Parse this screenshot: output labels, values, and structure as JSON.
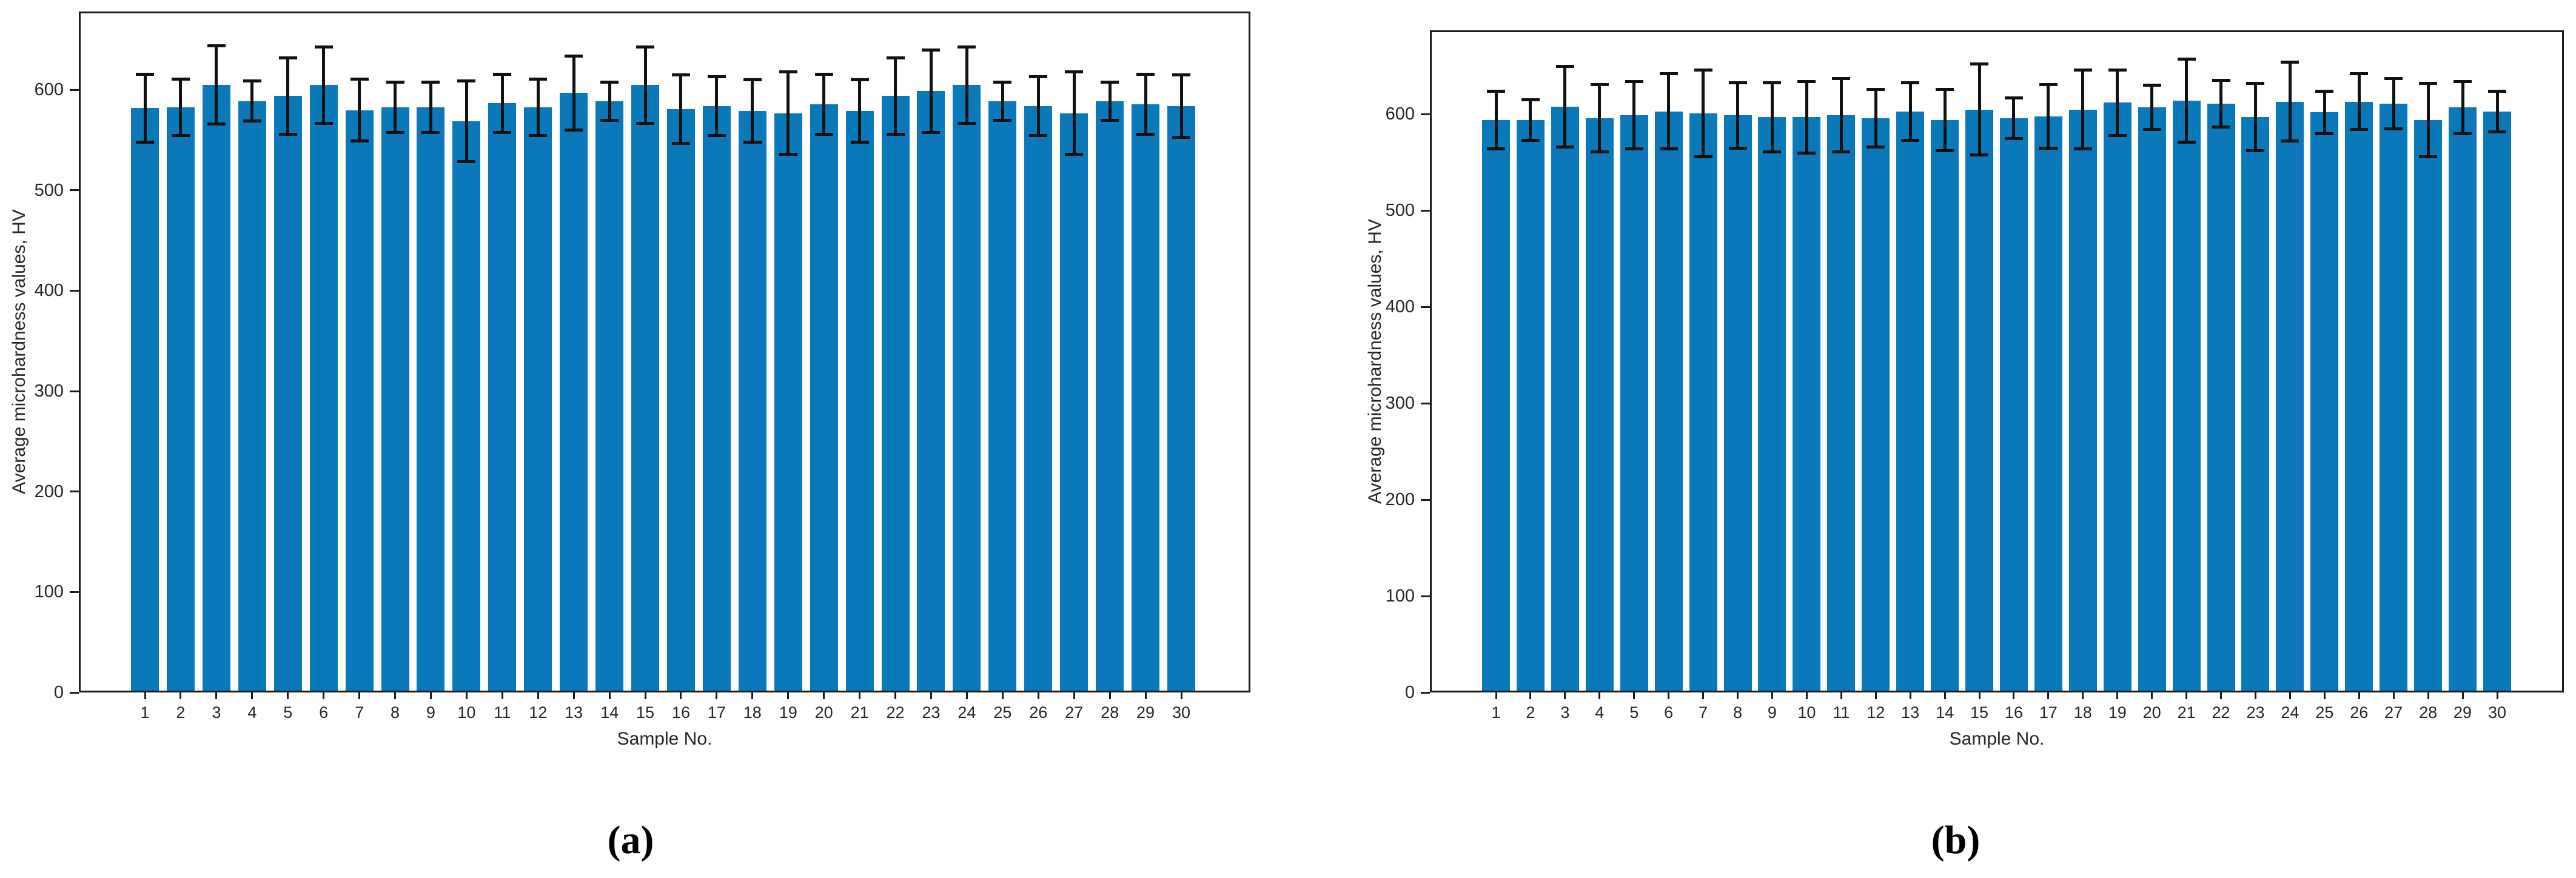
{
  "figure": {
    "panel_a_caption": "(a)",
    "panel_b_caption": "(b)"
  },
  "chart_data": [
    {
      "type": "bar",
      "caption": "(a)",
      "xlabel": "Sample No.",
      "ylabel": "Average microhardness values, HV",
      "categories": [
        "1",
        "2",
        "3",
        "4",
        "5",
        "6",
        "7",
        "8",
        "9",
        "10",
        "11",
        "12",
        "13",
        "14",
        "15",
        "16",
        "17",
        "18",
        "19",
        "20",
        "21",
        "22",
        "23",
        "24",
        "25",
        "26",
        "27",
        "28",
        "29",
        "30"
      ],
      "values": [
        580,
        581,
        603,
        587,
        592,
        603,
        578,
        581,
        581,
        567,
        585,
        581,
        595,
        587,
        603,
        579,
        582,
        577,
        575,
        584,
        577,
        592,
        597,
        603,
        587,
        582,
        575,
        587,
        584,
        582
      ],
      "errors": [
        34,
        28,
        39,
        20,
        38,
        38,
        31,
        25,
        25,
        40,
        29,
        28,
        37,
        19,
        38,
        34,
        29,
        31,
        41,
        30,
        31,
        38,
        41,
        38,
        19,
        29,
        41,
        19,
        30,
        31
      ],
      "yticks": [
        0,
        100,
        200,
        300,
        400,
        500,
        600
      ],
      "ylim": [
        0,
        678
      ],
      "grid": false,
      "legend": "none",
      "bar_color": "#0b79b9",
      "error_bar_color": "#111111"
    },
    {
      "type": "bar",
      "caption": "(b)",
      "xlabel": "Sample No.",
      "ylabel": "Average microhardness values, HV",
      "categories": [
        "1",
        "2",
        "3",
        "4",
        "5",
        "6",
        "7",
        "8",
        "9",
        "10",
        "11",
        "12",
        "13",
        "14",
        "15",
        "16",
        "17",
        "18",
        "19",
        "20",
        "21",
        "22",
        "23",
        "24",
        "25",
        "26",
        "27",
        "28",
        "29",
        "30"
      ],
      "values": [
        592,
        592,
        606,
        594,
        597,
        601,
        599,
        597,
        595,
        595,
        597,
        594,
        601,
        592,
        603,
        594,
        596,
        603,
        610,
        605,
        612,
        609,
        595,
        611,
        600,
        611,
        609,
        592,
        605,
        601
      ],
      "errors": [
        30,
        21,
        42,
        35,
        35,
        39,
        45,
        34,
        36,
        37,
        38,
        30,
        30,
        32,
        47,
        21,
        33,
        41,
        34,
        23,
        43,
        24,
        35,
        41,
        22,
        29,
        26,
        38,
        27,
        21
      ],
      "yticks": [
        0,
        100,
        200,
        300,
        400,
        500,
        600
      ],
      "ylim": [
        0,
        687
      ],
      "grid": false,
      "legend": "none",
      "bar_color": "#0b79b9",
      "error_bar_color": "#111111"
    }
  ]
}
